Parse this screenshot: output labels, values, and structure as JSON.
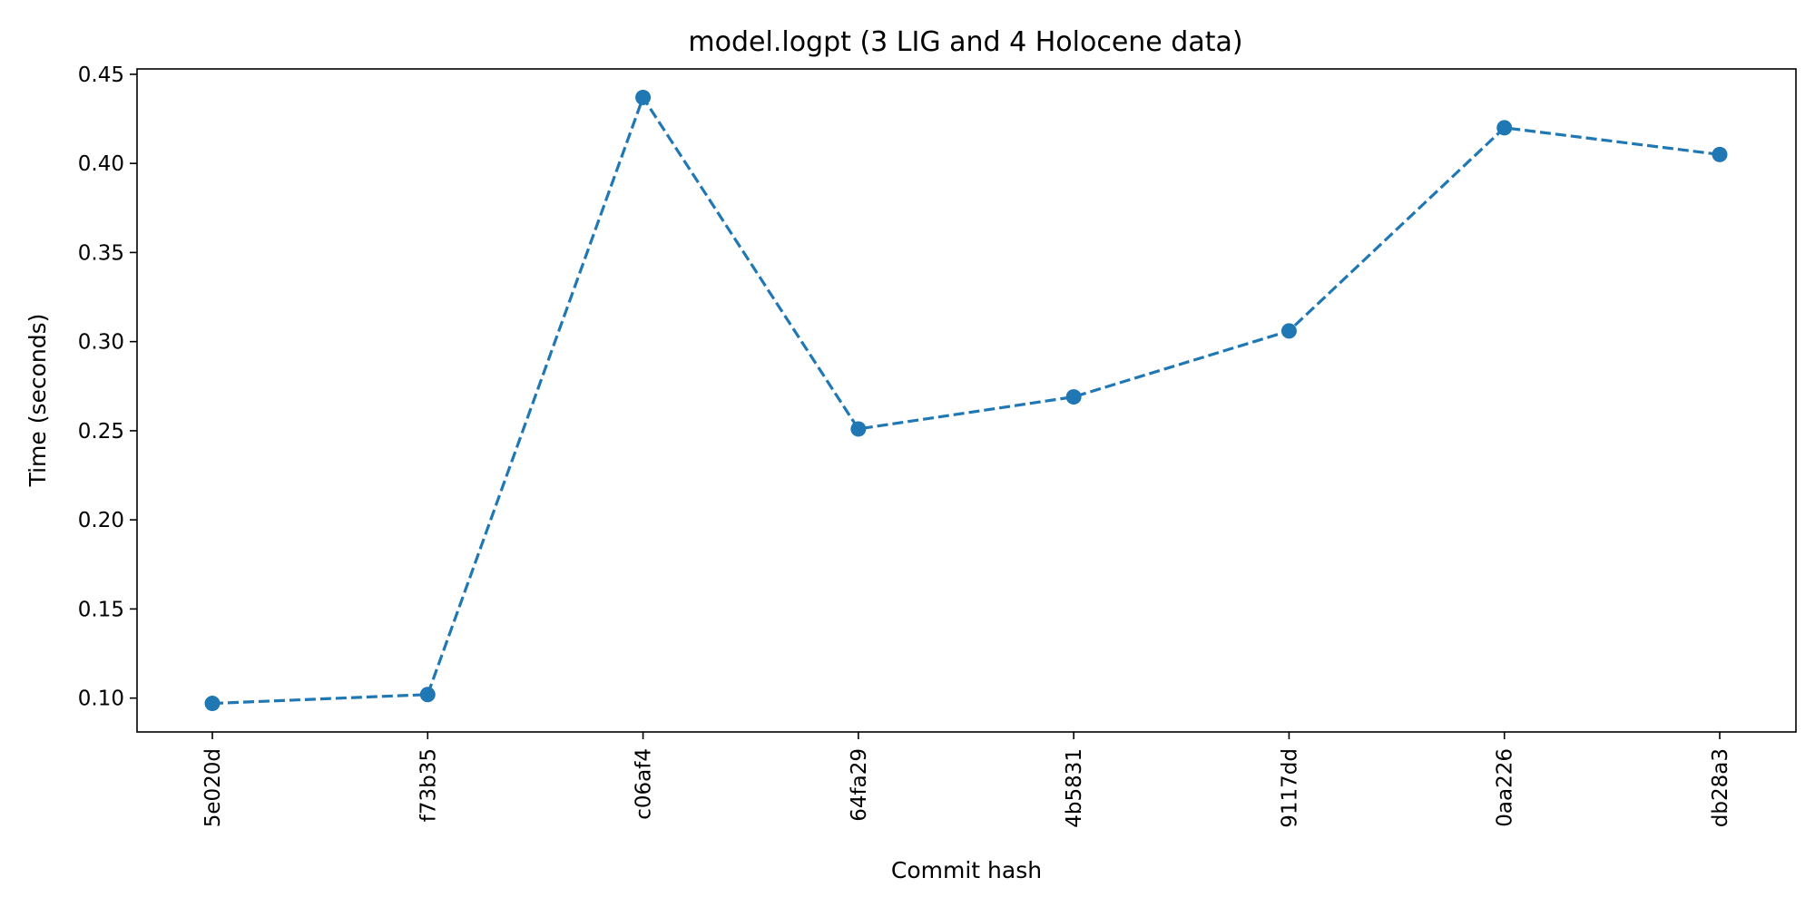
{
  "chart_data": {
    "type": "line",
    "title": "model.logpt (3 LIG and 4 Holocene data)",
    "xlabel": "Commit hash",
    "ylabel": "Time (seconds)",
    "categories": [
      "5e020d",
      "f73b35",
      "c06af4",
      "64fa29",
      "4b5831",
      "9117dd",
      "0aa226",
      "db28a3"
    ],
    "series": [
      {
        "values": [
          0.097,
          0.102,
          0.437,
          0.251,
          0.269,
          0.306,
          0.42,
          0.405
        ],
        "color": "#1f77b4",
        "line_style": "dashed",
        "marker": "circle"
      }
    ],
    "ylim": [
      0.081,
      0.453
    ],
    "yticks": [
      0.1,
      0.15,
      0.2,
      0.25,
      0.3,
      0.35,
      0.4,
      0.45
    ],
    "ytick_labels": [
      "0.10",
      "0.15",
      "0.20",
      "0.25",
      "0.30",
      "0.35",
      "0.40",
      "0.45"
    ],
    "grid": false,
    "legend": "none"
  }
}
